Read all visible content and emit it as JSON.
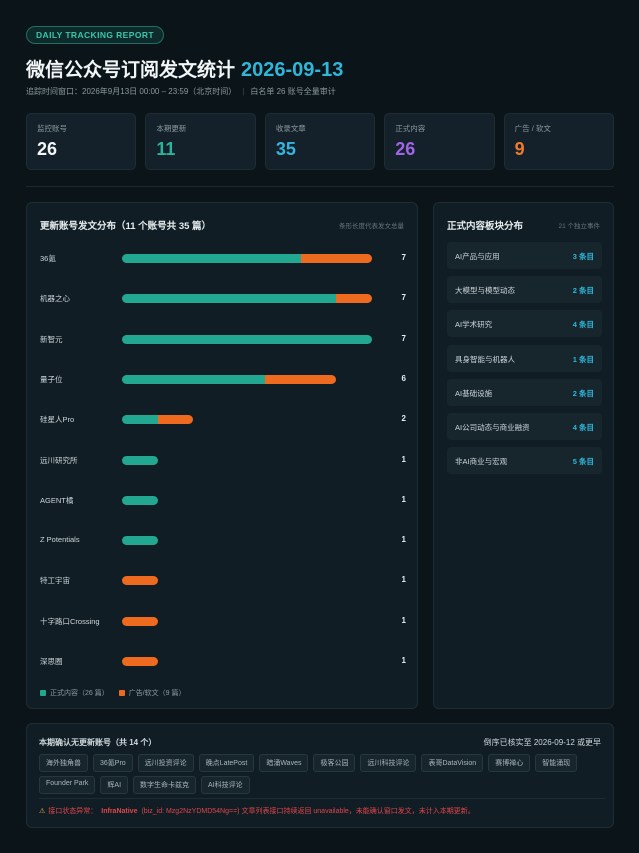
{
  "badge": "DAILY TRACKING REPORT",
  "title": "微信公众号订阅发文统计",
  "title_date": "2026-09-13",
  "subtitle_window": "追踪时间窗口：2026年9月13日 00:00 – 23:59（北京时间）",
  "subtitle_scope": "白名单 26 账号全量审计",
  "stats": [
    {
      "label": "监控账号",
      "value": "26",
      "color": "#f2f6f7"
    },
    {
      "label": "本期更新",
      "value": "11",
      "color": "#2bb39b"
    },
    {
      "label": "收录文章",
      "value": "35",
      "color": "#35b4e0"
    },
    {
      "label": "正式内容",
      "value": "26",
      "color": "#a064e6"
    },
    {
      "label": "广告 / 软文",
      "value": "9",
      "color": "#f07a2c"
    }
  ],
  "dist": {
    "title": "更新账号发文分布（11 个账号共 35 篇）",
    "note": "条形长度代表发文总量",
    "colors": {
      "formal": "#22a791",
      "ad": "#ee6a1f"
    },
    "max": 7,
    "rows": [
      {
        "name": "36氪",
        "formal": 5,
        "ad": 2,
        "total": "7"
      },
      {
        "name": "机器之心",
        "formal": 6,
        "ad": 1,
        "total": "7"
      },
      {
        "name": "新智元",
        "formal": 7,
        "ad": 0,
        "total": "7"
      },
      {
        "name": "量子位",
        "formal": 4,
        "ad": 2,
        "total": "6"
      },
      {
        "name": "硅星人Pro",
        "formal": 1,
        "ad": 1,
        "total": "2"
      },
      {
        "name": "远川研究所",
        "formal": 1,
        "ad": 0,
        "total": "1"
      },
      {
        "name": "AGENT橘",
        "formal": 1,
        "ad": 0,
        "total": "1"
      },
      {
        "name": "Z Potentials",
        "formal": 1,
        "ad": 0,
        "total": "1"
      },
      {
        "name": "特工宇宙",
        "formal": 0,
        "ad": 1,
        "total": "1"
      },
      {
        "name": "十字路口Crossing",
        "formal": 0,
        "ad": 1,
        "total": "1"
      },
      {
        "name": "深思圈",
        "formal": 0,
        "ad": 1,
        "total": "1"
      }
    ],
    "legend_formal": "正式内容（26 篇）",
    "legend_ad": "广告/软文（9 篇）"
  },
  "categories": {
    "title": "正式内容板块分布",
    "note": "21 个独立事件",
    "items": [
      {
        "name": "AI产品与应用",
        "count": "3 条目"
      },
      {
        "name": "大模型与模型动态",
        "count": "2 条目"
      },
      {
        "name": "AI学术研究",
        "count": "4 条目"
      },
      {
        "name": "具身智能与机器人",
        "count": "1 条目"
      },
      {
        "name": "AI基础设施",
        "count": "2 条目"
      },
      {
        "name": "AI公司动态与商业融资",
        "count": "4 条目"
      },
      {
        "name": "非AI商业与宏观",
        "count": "5 条目"
      }
    ]
  },
  "no_update": {
    "title": "本期确认无更新账号（共 14 个）",
    "right_note": "倒序已核实至 2026-09-12 或更早",
    "accounts": [
      "海外独角兽",
      "36氪Pro",
      "远川投资评论",
      "晚点LatePost",
      "暗涌Waves",
      "极客公园",
      "远川科技评论",
      "表哥DataVision",
      "赛博禅心",
      "智能涌现",
      "Founder Park",
      "辉AI",
      "数字生命卡兹克",
      "AI科技评论"
    ],
    "warning_prefix": "接口状态异常：",
    "warning_name": "InfraNative",
    "warning_detail": "(biz_id: Mzg2NzYDMD54Ng==) 文章列表接口持续返回 unavailable，未能确认窗口发文，未计入本期更新。"
  }
}
